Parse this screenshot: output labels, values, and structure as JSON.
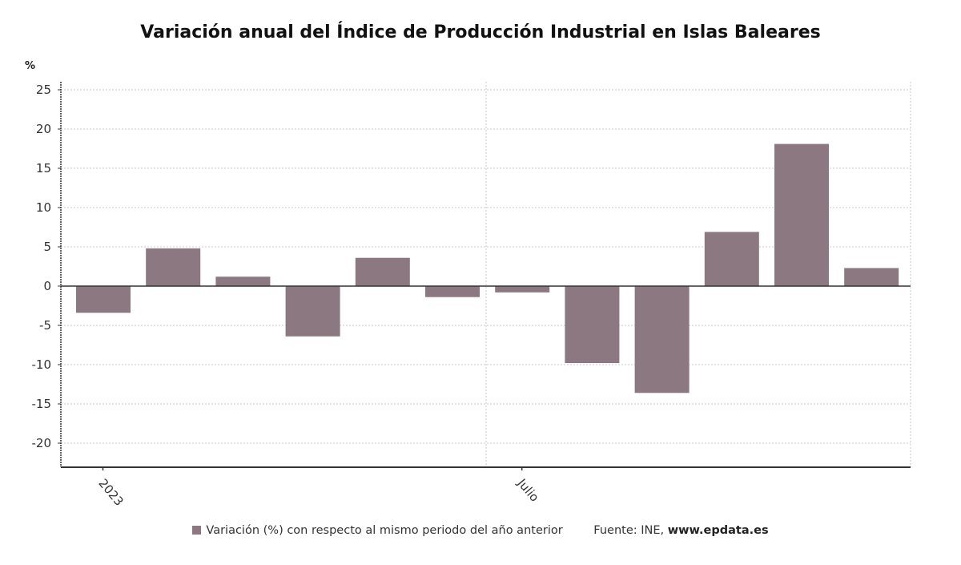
{
  "chart_data": {
    "type": "bar",
    "title": "Variación anual del Índice de Producción Industrial en Islas Baleares",
    "ylabel": "%",
    "xlabel": "",
    "ylim": [
      -23,
      26
    ],
    "yticks": [
      25,
      20,
      15,
      10,
      5,
      0,
      -5,
      -10,
      -15,
      -20
    ],
    "grid": true,
    "categories": [
      "2023-01",
      "2023-02",
      "2023-03",
      "2023-04",
      "2023-05",
      "2023-06",
      "2023-07",
      "2023-08",
      "2023-09",
      "2023-10",
      "2023-11",
      "2023-12"
    ],
    "xtick_labels": [
      {
        "index": 0,
        "label": "2023"
      },
      {
        "index": 6,
        "label": "Julio"
      }
    ],
    "series": [
      {
        "name": "Variación (%) con respecto al mismo periodo del año anterior",
        "color": "#8c7880",
        "values": [
          -3.4,
          4.8,
          1.2,
          -6.4,
          3.6,
          -1.4,
          -0.8,
          -9.8,
          -13.6,
          6.9,
          18.1,
          2.3
        ]
      }
    ],
    "legend_position": "bottom",
    "source_prefix": "Fuente: INE, ",
    "source_site": "www.epdata.es"
  }
}
